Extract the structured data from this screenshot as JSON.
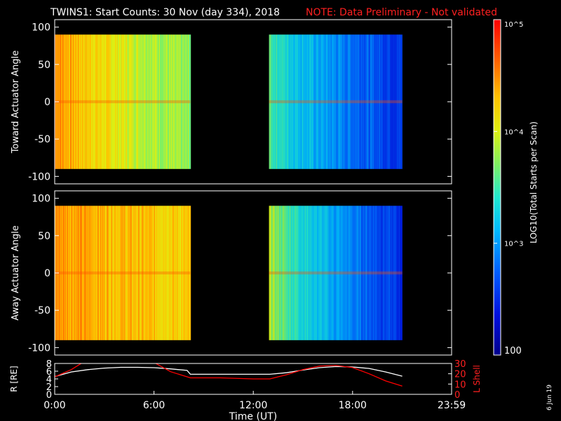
{
  "header": {
    "title": "TWINS1: Start Counts: 30 Nov (day 334), 2018",
    "note": "NOTE: Data Preliminary - Not validated"
  },
  "footer": {
    "date_stamp": "6 Jun 19"
  },
  "colors": {
    "background": "#000000",
    "axes": "#ffffff",
    "note": "#ff2020",
    "r_line": "#ffffff",
    "lshell_line": "#ff0000"
  },
  "colorbar": {
    "label": "LOG10(Total Starts per Scan)",
    "scale": "log",
    "range": [
      100,
      100000
    ],
    "ticks": [
      {
        "value": 100,
        "label": "100"
      },
      {
        "value": 1000,
        "label": "10^3"
      },
      {
        "value": 10000,
        "label": "10^4"
      },
      {
        "value": 100000,
        "label": "10^5"
      }
    ]
  },
  "chart_data": [
    {
      "type": "heatmap",
      "ylabel": "Toward Actuator Angle",
      "xlim": [
        "0:00",
        "23:59"
      ],
      "ylim": [
        -110,
        110
      ],
      "yticks": [
        100,
        50,
        0,
        -50,
        -100
      ],
      "angle_range": [
        -90,
        90
      ],
      "data_blocks": [
        {
          "start_hr": 0.0,
          "end_hr": 8.2,
          "level_start": 4.55,
          "level_end": 3.7
        },
        {
          "start_hr": 12.95,
          "end_hr": 21.0,
          "level_start": 3.6,
          "level_end": 2.55
        }
      ]
    },
    {
      "type": "heatmap",
      "ylabel": "Away Actuator Angle",
      "xlim": [
        "0:00",
        "23:59"
      ],
      "ylim": [
        -110,
        110
      ],
      "yticks": [
        100,
        50,
        0,
        -50,
        -100
      ],
      "angle_range": [
        -90,
        90
      ],
      "data_blocks": [
        {
          "start_hr": 0.0,
          "end_hr": 8.2,
          "level_start": 4.5,
          "level_end": 4.2
        },
        {
          "start_hr": 12.95,
          "end_hr": 21.0,
          "level_start": 3.9,
          "level_end": 2.5
        }
      ]
    },
    {
      "type": "line",
      "xlabel": "Time (UT)",
      "xticks": [
        "0:00",
        "6:00",
        "12:00",
        "18:00",
        "23:59"
      ],
      "y1label": "R [RE]",
      "y1ticks": [
        0,
        2,
        4,
        6,
        8
      ],
      "y1lim": [
        0,
        8
      ],
      "y2label": "L Shell",
      "y2ticks": [
        0,
        10,
        20,
        30
      ],
      "y2lim": [
        0,
        30
      ],
      "series": [
        {
          "name": "R [RE]",
          "axis": "left",
          "x": [
            0,
            1,
            2,
            3,
            4,
            5,
            6,
            7,
            8,
            8.2,
            10,
            12,
            13,
            14,
            15,
            16,
            17,
            18,
            19,
            20,
            21
          ],
          "values": [
            4.6,
            5.8,
            6.4,
            6.8,
            7.0,
            7.0,
            6.9,
            6.6,
            6.2,
            5.2,
            5.2,
            5.2,
            5.2,
            5.6,
            6.3,
            6.9,
            7.2,
            7.1,
            6.7,
            5.8,
            4.7
          ]
        },
        {
          "name": "L Shell",
          "axis": "right",
          "x": [
            0,
            1,
            1.9,
            2.1,
            5.7,
            6.0,
            7.0,
            8.2,
            10,
            12,
            13,
            14,
            15,
            16,
            17,
            18,
            19,
            20,
            21
          ],
          "values": [
            17,
            24,
            33,
            null,
            null,
            31,
            22,
            16,
            16,
            15,
            15,
            19,
            24,
            27.5,
            28,
            26,
            20,
            13,
            8
          ]
        }
      ]
    }
  ]
}
